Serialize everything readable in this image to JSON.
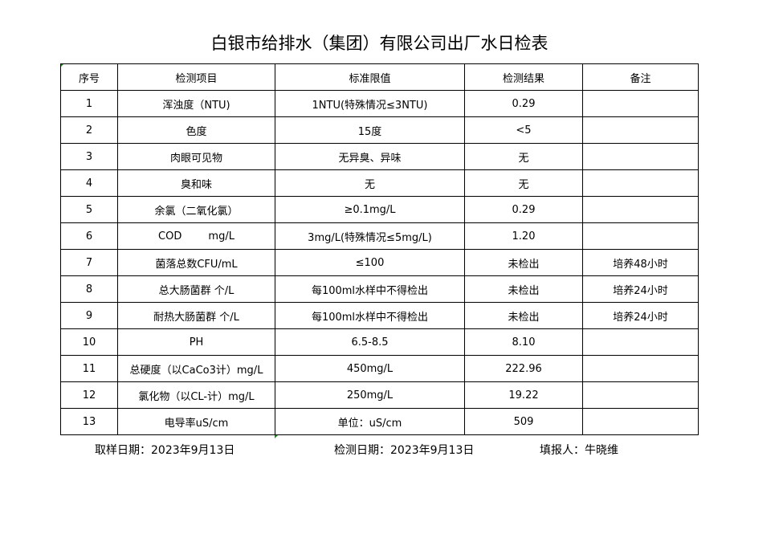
{
  "title": "白银市给排水（集团）有限公司出厂水日检表",
  "table": {
    "headers": [
      "序号",
      "检测项目",
      "标准限值",
      "检测结果",
      "备注"
    ],
    "rows": [
      [
        "1",
        "浑浊度（NTU)",
        "1NTU(特殊情况≤3NTU)",
        "0.29",
        ""
      ],
      [
        "2",
        "色度",
        "15度",
        "<5",
        ""
      ],
      [
        "3",
        "肉眼可见物",
        "无异臭、异味",
        "无",
        ""
      ],
      [
        "4",
        "臭和味",
        "无",
        "无",
        ""
      ],
      [
        "5",
        "余氯（二氧化氯）",
        "≥0.1mg/L",
        "0.29",
        ""
      ],
      [
        "6",
        "COD        mg/L",
        "3mg/L(特殊情况≤5mg/L)",
        "1.20",
        ""
      ],
      [
        "7",
        "菌落总数CFU/mL",
        "≤100",
        "未检出",
        "培养48小时"
      ],
      [
        "8",
        "总大肠菌群 个/L",
        "每100ml水样中不得检出",
        "未检出",
        "培养24小时"
      ],
      [
        "9",
        "耐热大肠菌群 个/L",
        "每100ml水样中不得检出",
        "未检出",
        "培养24小时"
      ],
      [
        "10",
        "PH",
        "6.5-8.5",
        "8.10",
        ""
      ],
      [
        "11",
        "总硬度（以CaCo3计）mg/L",
        "450mg/L",
        "222.96",
        ""
      ],
      [
        "12",
        "氯化物（以CL-计）mg/L",
        "250mg/L",
        "19.22",
        ""
      ],
      [
        "13",
        "电导率uS/cm",
        "单位：uS/cm",
        "509",
        ""
      ]
    ]
  },
  "footer": {
    "sampling_date": "取样日期：2023年9月13日",
    "test_date": "检测日期：2023年9月13日",
    "reporter": "填报人：牛晓维"
  },
  "colors": {
    "cell_marker": "#1e8a1e"
  }
}
